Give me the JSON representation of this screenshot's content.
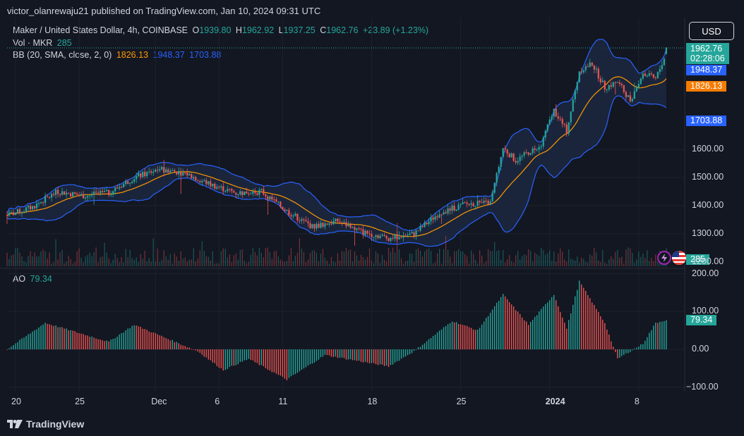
{
  "publisher": "victor_olanrewaju21 published on TradingView.com, Jan 10, 2024 09:31 UTC",
  "symbol": "Maker / United States Dollar, 4h, COINBASE",
  "ohlc": {
    "o_label": "O",
    "o": "1939.80",
    "h_label": "H",
    "h": "1962.92",
    "l_label": "L",
    "l": "1937.25",
    "c_label": "C",
    "c": "1962.76",
    "change": "+23.89 (+1.23%)"
  },
  "volume": {
    "label": "Vol · MKR",
    "value": "285"
  },
  "bb": {
    "label": "BB (20, SMA, close, 2, 0)",
    "basis": "1826.13",
    "upper": "1948.37",
    "lower": "1703.88"
  },
  "ao": {
    "label": "AO",
    "value": "79.34"
  },
  "currency": "USD",
  "price_tag": {
    "price": "1962.76",
    "countdown": "02:28:06"
  },
  "vol_tag": "285",
  "brand": "TradingView",
  "colors": {
    "up": "#26a69a",
    "down": "#ef5350",
    "basis": "#ff9800",
    "bands": "#2962ff",
    "band_fill": "#1c2840",
    "background": "#131722"
  },
  "chart_data": {
    "type": "candlestick",
    "price_axis": {
      "ticks": [
        "1600.00",
        "1500.00",
        "1400.00",
        "1300.00",
        "1200.00"
      ],
      "range": [
        1200,
        1990
      ]
    },
    "ao_axis": {
      "ticks": [
        "200.00",
        "100.00",
        "0.00",
        "−100.00"
      ],
      "range": [
        -110,
        200
      ]
    },
    "x_ticks": [
      {
        "label": "20",
        "date": "2023-11-20"
      },
      {
        "label": "25",
        "date": "2023-11-25"
      },
      {
        "label": "Dec",
        "date": "2023-12-01"
      },
      {
        "label": "6",
        "date": "2023-12-06"
      },
      {
        "label": "11",
        "date": "2023-12-11"
      },
      {
        "label": "18",
        "date": "2023-12-18"
      },
      {
        "label": "25",
        "date": "2023-12-25"
      },
      {
        "label": "2024",
        "date": "2024-01-01"
      },
      {
        "label": "8",
        "date": "2024-01-08"
      }
    ],
    "price_anchors": [
      {
        "date": "2023-11-19",
        "close": 1365
      },
      {
        "date": "2023-11-21",
        "close": 1395
      },
      {
        "date": "2023-11-23",
        "close": 1450
      },
      {
        "date": "2023-11-25",
        "close": 1435
      },
      {
        "date": "2023-11-27",
        "close": 1445
      },
      {
        "date": "2023-11-29",
        "close": 1500
      },
      {
        "date": "2023-12-01",
        "close": 1530
      },
      {
        "date": "2023-12-03",
        "close": 1515
      },
      {
        "date": "2023-12-05",
        "close": 1475
      },
      {
        "date": "2023-12-07",
        "close": 1445
      },
      {
        "date": "2023-12-09",
        "close": 1450
      },
      {
        "date": "2023-12-11",
        "close": 1380
      },
      {
        "date": "2023-12-13",
        "close": 1325
      },
      {
        "date": "2023-12-15",
        "close": 1345
      },
      {
        "date": "2023-12-17",
        "close": 1305
      },
      {
        "date": "2023-12-19",
        "close": 1285
      },
      {
        "date": "2023-12-21",
        "close": 1300
      },
      {
        "date": "2023-12-23",
        "close": 1375
      },
      {
        "date": "2023-12-25",
        "close": 1405
      },
      {
        "date": "2023-12-27",
        "close": 1410
      },
      {
        "date": "2023-12-28",
        "close": 1605
      },
      {
        "date": "2023-12-29",
        "close": 1560
      },
      {
        "date": "2023-12-31",
        "close": 1620
      },
      {
        "date": "2024-01-01",
        "close": 1740
      },
      {
        "date": "2024-01-02",
        "close": 1665
      },
      {
        "date": "2024-01-03",
        "close": 1880
      },
      {
        "date": "2024-01-04",
        "close": 1905
      },
      {
        "date": "2024-01-05",
        "close": 1820
      },
      {
        "date": "2024-01-06",
        "close": 1840
      },
      {
        "date": "2024-01-07",
        "close": 1775
      },
      {
        "date": "2024-01-08",
        "close": 1870
      },
      {
        "date": "2024-01-09",
        "close": 1850
      },
      {
        "date": "2024-01-10",
        "close": 1962.76
      }
    ],
    "ao_anchors": [
      {
        "date": "2023-11-19",
        "value": 0
      },
      {
        "date": "2023-11-22",
        "value": 70
      },
      {
        "date": "2023-11-27",
        "value": 20
      },
      {
        "date": "2023-11-29",
        "value": 65
      },
      {
        "date": "2023-12-04",
        "value": -5
      },
      {
        "date": "2023-12-06",
        "value": -55
      },
      {
        "date": "2023-12-08",
        "value": -25
      },
      {
        "date": "2023-12-11",
        "value": -80
      },
      {
        "date": "2023-12-14",
        "value": -15
      },
      {
        "date": "2023-12-19",
        "value": -45
      },
      {
        "date": "2023-12-21",
        "value": -5
      },
      {
        "date": "2023-12-24",
        "value": 75
      },
      {
        "date": "2023-12-26",
        "value": 50
      },
      {
        "date": "2023-12-28",
        "value": 145
      },
      {
        "date": "2023-12-30",
        "value": 65
      },
      {
        "date": "2024-01-01",
        "value": 145
      },
      {
        "date": "2024-01-02",
        "value": 55
      },
      {
        "date": "2024-01-03",
        "value": 180
      },
      {
        "date": "2024-01-05",
        "value": 70
      },
      {
        "date": "2024-01-06",
        "value": -25
      },
      {
        "date": "2024-01-08",
        "value": 15
      },
      {
        "date": "2024-01-09",
        "value": 70
      },
      {
        "date": "2024-01-10",
        "value": 79.34
      }
    ],
    "current": {
      "open": 1939.8,
      "high": 1962.92,
      "low": 1937.25,
      "close": 1962.76,
      "upper_band": 1948.37,
      "basis": 1826.13,
      "lower_band": 1703.88,
      "volume": 285,
      "ao": 79.34
    }
  }
}
